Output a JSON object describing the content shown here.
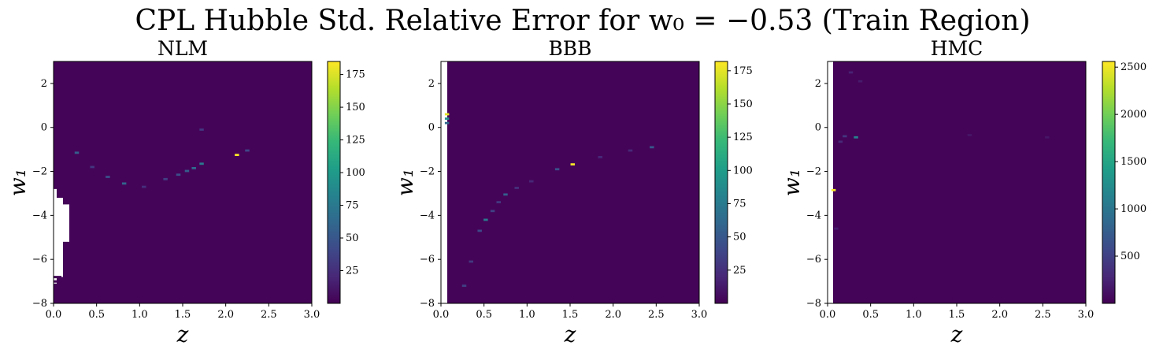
{
  "figure": {
    "title": "CPL Hubble Std. Relative Error for w₀ = −0.53 (Train Region)"
  },
  "colors": {
    "viridis": [
      "#440154",
      "#482878",
      "#3e4989",
      "#31688e",
      "#26828e",
      "#1f9e89",
      "#35b779",
      "#6ece58",
      "#b5de2b",
      "#fde725"
    ],
    "background": "#440154"
  },
  "chart_data": [
    {
      "type": "heatmap",
      "title": "NLM",
      "xlabel": "z",
      "ylabel": "w₁",
      "xlim": [
        0.0,
        3.0
      ],
      "ylim": [
        -8,
        3
      ],
      "xticks": [
        "0.0",
        "0.5",
        "1.0",
        "1.5",
        "2.0",
        "2.5",
        "3.0"
      ],
      "yticks": [
        "−8",
        "−6",
        "−4",
        "−2",
        "0",
        "2"
      ],
      "colorbar": {
        "range": [
          0,
          185
        ],
        "ticks": [
          "25",
          "50",
          "75",
          "100",
          "125",
          "150",
          "175"
        ]
      },
      "cells": [
        {
          "z": 0.27,
          "w1": -1.15,
          "v": 55
        },
        {
          "z": 0.45,
          "w1": -1.8,
          "v": 30
        },
        {
          "z": 0.63,
          "w1": -2.25,
          "v": 45
        },
        {
          "z": 0.82,
          "w1": -2.55,
          "v": 60
        },
        {
          "z": 1.05,
          "w1": -2.7,
          "v": 25
        },
        {
          "z": 1.3,
          "w1": -2.35,
          "v": 35
        },
        {
          "z": 1.45,
          "w1": -2.15,
          "v": 45
        },
        {
          "z": 1.55,
          "w1": -1.98,
          "v": 55
        },
        {
          "z": 1.63,
          "w1": -1.85,
          "v": 65
        },
        {
          "z": 1.72,
          "w1": -1.65,
          "v": 75
        },
        {
          "z": 1.72,
          "w1": -0.1,
          "v": 30
        },
        {
          "z": 2.13,
          "w1": -1.25,
          "v": 185
        },
        {
          "z": 2.25,
          "w1": -1.05,
          "v": 40
        }
      ],
      "background_value": 2,
      "missing_region": "white region at small z, w1 between -7 and -2.8"
    },
    {
      "type": "heatmap",
      "title": "BBB",
      "xlabel": "z",
      "ylabel": "w₁",
      "xlim": [
        0.0,
        3.0
      ],
      "ylim": [
        -8,
        3
      ],
      "xticks": [
        "0.0",
        "0.5",
        "1.0",
        "1.5",
        "2.0",
        "2.5",
        "3.0"
      ],
      "yticks": [
        "−8",
        "−6",
        "−4",
        "−2",
        "0",
        "2"
      ],
      "colorbar": {
        "range": [
          0,
          182
        ],
        "ticks": [
          "25",
          "50",
          "75",
          "100",
          "125",
          "150",
          "175"
        ]
      },
      "cells": [
        {
          "z": 0.07,
          "w1": 0.6,
          "v": 175
        },
        {
          "z": 0.07,
          "w1": 0.4,
          "v": 90
        },
        {
          "z": 0.07,
          "w1": 0.2,
          "v": 60
        },
        {
          "z": 0.27,
          "w1": -7.2,
          "v": 35
        },
        {
          "z": 0.35,
          "w1": -6.1,
          "v": 30
        },
        {
          "z": 0.45,
          "w1": -4.7,
          "v": 40
        },
        {
          "z": 0.52,
          "w1": -4.2,
          "v": 75
        },
        {
          "z": 0.6,
          "w1": -3.8,
          "v": 35
        },
        {
          "z": 0.67,
          "w1": -3.4,
          "v": 30
        },
        {
          "z": 0.75,
          "w1": -3.05,
          "v": 55
        },
        {
          "z": 0.88,
          "w1": -2.75,
          "v": 25
        },
        {
          "z": 1.05,
          "w1": -2.45,
          "v": 20
        },
        {
          "z": 1.35,
          "w1": -1.9,
          "v": 45
        },
        {
          "z": 1.53,
          "w1": -1.68,
          "v": 180
        },
        {
          "z": 1.85,
          "w1": -1.35,
          "v": 20
        },
        {
          "z": 2.2,
          "w1": -1.05,
          "v": 20
        },
        {
          "z": 2.45,
          "w1": -0.9,
          "v": 50
        }
      ],
      "background_value": 2,
      "missing_region": "white strip at smallest z across all w1"
    },
    {
      "type": "heatmap",
      "title": "HMC",
      "xlabel": "z",
      "ylabel": "w₁",
      "xlim": [
        0.0,
        3.0
      ],
      "ylim": [
        -8,
        3
      ],
      "xticks": [
        "0.0",
        "0.5",
        "1.0",
        "1.5",
        "2.0",
        "2.5",
        "3.0"
      ],
      "yticks": [
        "−8",
        "−6",
        "−4",
        "−2",
        "0",
        "2"
      ],
      "colorbar": {
        "range": [
          0,
          2560
        ],
        "ticks": [
          "500",
          "1000",
          "1500",
          "2000",
          "2500"
        ]
      },
      "cells": [
        {
          "z": 0.07,
          "w1": -2.85,
          "v": 2550
        },
        {
          "z": 0.33,
          "w1": -0.45,
          "v": 1150
        },
        {
          "z": 0.2,
          "w1": -0.4,
          "v": 400
        },
        {
          "z": 0.15,
          "w1": -0.65,
          "v": 300
        },
        {
          "z": 0.27,
          "w1": 2.5,
          "v": 250
        },
        {
          "z": 0.38,
          "w1": 2.1,
          "v": 200
        },
        {
          "z": 0.1,
          "w1": -4.6,
          "v": 200
        },
        {
          "z": 1.65,
          "w1": -0.35,
          "v": 150
        },
        {
          "z": 2.55,
          "w1": -0.45,
          "v": 150
        }
      ],
      "background_value": 20,
      "missing_region": "white strip at smallest z across all w1"
    }
  ]
}
